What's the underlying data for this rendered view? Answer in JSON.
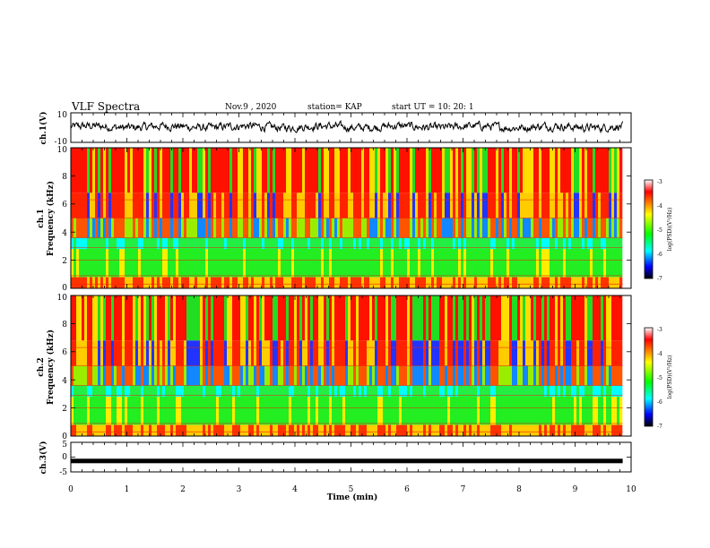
{
  "header": {
    "title": "VLF Spectra",
    "date": "Nov.9  , 2020",
    "station": "station= KAP",
    "start": "start  UT  =   10: 20: 1"
  },
  "chart_data": [
    {
      "id": "ch1-waveform",
      "type": "line",
      "ylabel": "ch.1(V)",
      "yticks": [
        "10",
        "-10"
      ],
      "ylim": [
        -10,
        10
      ],
      "xlim": [
        0,
        10
      ],
      "color": "#000000",
      "description_values": {
        "baseline": 0.5,
        "amplitude": 3.5,
        "end_x": 9.85
      }
    },
    {
      "id": "ch1-spectrogram",
      "type": "heatmap",
      "ylabel": "ch.1\nFrequency (kHz)",
      "ylabel_line1": "ch.1",
      "ylabel_line2": "Frequency  (kHz)",
      "yticks": [
        "0",
        "2",
        "4",
        "6",
        "8",
        "10"
      ],
      "ylim": [
        0,
        10
      ],
      "xlim": [
        0,
        10
      ],
      "data_end_x": 9.85,
      "colorbar": {
        "label": "log(PSD)(V²/Hz)",
        "ticks": [
          "-3",
          "-4",
          "-5",
          "-6",
          "-7"
        ],
        "range": [
          -7,
          -3
        ],
        "colors": [
          "#ffffff",
          "#ff0000",
          "#ffff00",
          "#00ff00",
          "#00ffff",
          "#0000ff",
          "#000000"
        ]
      }
    },
    {
      "id": "ch2-spectrogram",
      "type": "heatmap",
      "ylabel": "ch.2\nFrequency (kHz)",
      "ylabel_line1": "ch.2",
      "ylabel_line2": "Frequency  (kHz)",
      "yticks": [
        "0",
        "2",
        "4",
        "6",
        "8",
        "10"
      ],
      "ylim": [
        0,
        10
      ],
      "xlim": [
        0,
        10
      ],
      "data_end_x": 9.85,
      "colorbar": {
        "label": "log(PSD)(V²/Hz)",
        "ticks": [
          "-3",
          "-4",
          "-5",
          "-6",
          "-7"
        ],
        "range": [
          -7,
          -3
        ],
        "colors": [
          "#ffffff",
          "#ff0000",
          "#ffff00",
          "#00ff00",
          "#00ffff",
          "#0000ff",
          "#000000"
        ]
      }
    },
    {
      "id": "ch3-waveform",
      "type": "line",
      "ylabel": "ch.3(V)",
      "yticks": [
        "5",
        "0",
        "-5"
      ],
      "ylim": [
        -5,
        5
      ],
      "xlim": [
        0,
        10
      ],
      "color": "#000000",
      "description_values": {
        "level": -1.3,
        "end_x": 9.85
      }
    }
  ],
  "xaxis": {
    "label": "Time  (min)",
    "ticks": [
      "0",
      "1",
      "2",
      "3",
      "4",
      "5",
      "6",
      "7",
      "8",
      "9",
      "10"
    ]
  }
}
